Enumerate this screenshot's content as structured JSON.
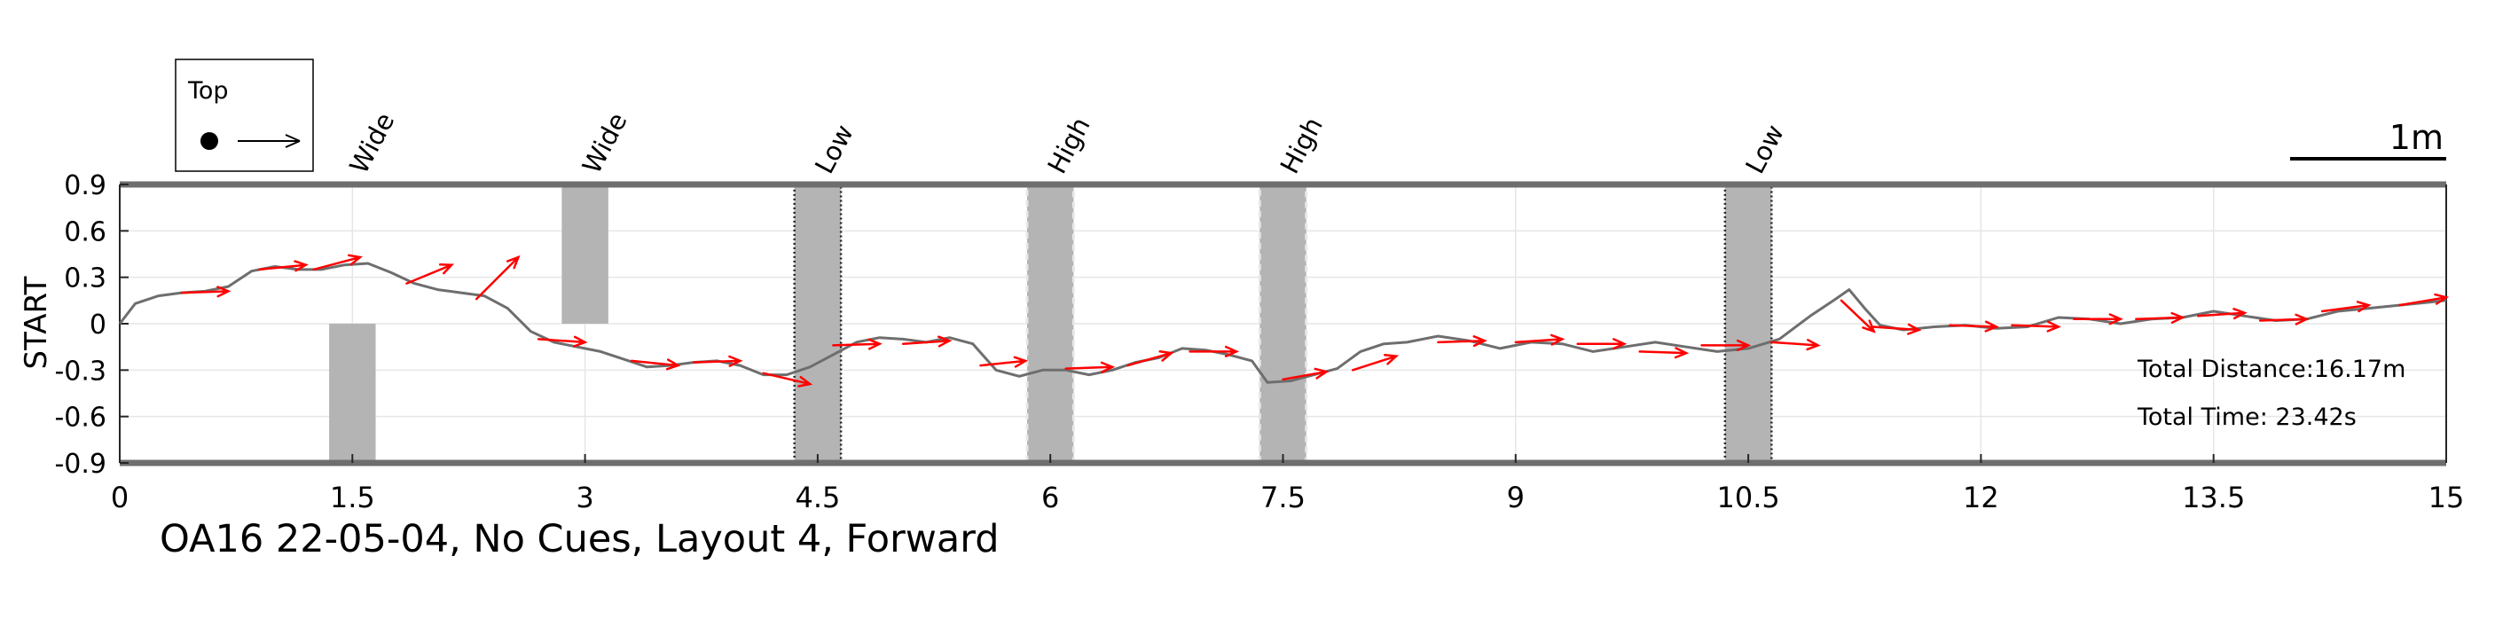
{
  "chart_data": {
    "type": "line",
    "title": "OA16 22-05-04, No Cues, Layout 4, Forward",
    "ylabel": "START",
    "xlabel": "",
    "xlim": [
      0,
      15
    ],
    "ylim": [
      -0.9,
      0.9
    ],
    "xticks": [
      0,
      1.5,
      3,
      4.5,
      6,
      7.5,
      9,
      10.5,
      12,
      13.5,
      15
    ],
    "xtick_labels": [
      "0",
      "1.5",
      "3",
      "4.5",
      "6",
      "7.5",
      "9",
      "10.5",
      "12",
      "13.5",
      "15"
    ],
    "yticks": [
      0.9,
      0.6,
      0.3,
      0,
      -0.3,
      -0.6,
      -0.9
    ],
    "ytick_labels": [
      "0.9",
      "0.6",
      "0.3",
      "0",
      "-0.3",
      "-0.6",
      "-0.9"
    ],
    "grid": true,
    "legend": {
      "label": "Top",
      "placement": "top-left"
    },
    "scale_bar_label": "1m",
    "annotations": [
      "Total Distance:16.17m",
      "Total Time: 23.42s"
    ],
    "obstacles": [
      {
        "label": "Wide",
        "x0": 1.35,
        "x1": 1.65,
        "y0": -0.9,
        "y1": 0.0,
        "style": "plain"
      },
      {
        "label": "Wide",
        "x0": 2.85,
        "x1": 3.15,
        "y0": 0.0,
        "y1": 0.9,
        "style": "plain"
      },
      {
        "label": "Low",
        "x0": 4.35,
        "x1": 4.65,
        "y0": -0.9,
        "y1": 0.9,
        "style": "dotted-dark"
      },
      {
        "label": "High",
        "x0": 5.85,
        "x1": 6.15,
        "y0": -0.9,
        "y1": 0.9,
        "style": "dashed-light"
      },
      {
        "label": "High",
        "x0": 7.35,
        "x1": 7.65,
        "y0": -0.9,
        "y1": 0.9,
        "style": "dashed-light"
      },
      {
        "label": "Low",
        "x0": 10.35,
        "x1": 10.65,
        "y0": -0.9,
        "y1": 0.9,
        "style": "dotted-dark"
      }
    ],
    "series": [
      {
        "name": "path",
        "x": [
          0,
          0.1,
          0.25,
          0.4,
          0.55,
          0.7,
          0.85,
          1.0,
          1.15,
          1.3,
          1.45,
          1.6,
          1.75,
          1.9,
          2.05,
          2.2,
          2.35,
          2.5,
          2.65,
          2.8,
          2.95,
          3.1,
          3.25,
          3.4,
          3.55,
          3.7,
          3.85,
          4.0,
          4.15,
          4.3,
          4.45,
          4.6,
          4.75,
          4.9,
          5.05,
          5.2,
          5.35,
          5.5,
          5.65,
          5.8,
          5.95,
          6.1,
          6.25,
          6.4,
          6.55,
          6.7,
          6.85,
          7.0,
          7.15,
          7.3,
          7.4,
          7.55,
          7.7,
          7.85,
          8.0,
          8.15,
          8.3,
          8.5,
          8.7,
          8.9,
          9.1,
          9.3,
          9.5,
          9.7,
          9.9,
          10.1,
          10.3,
          10.5,
          10.7,
          10.9,
          11.05,
          11.15,
          11.25,
          11.35,
          11.5,
          11.7,
          11.9,
          12.1,
          12.3,
          12.5,
          12.7,
          12.9,
          13.1,
          13.3,
          13.5,
          13.7,
          13.9,
          14.1,
          14.3,
          14.5,
          14.7,
          14.9,
          15.0
        ],
        "y": [
          0.0,
          0.13,
          0.18,
          0.2,
          0.21,
          0.24,
          0.34,
          0.37,
          0.35,
          0.35,
          0.38,
          0.39,
          0.33,
          0.26,
          0.22,
          0.2,
          0.18,
          0.1,
          -0.05,
          -0.12,
          -0.15,
          -0.18,
          -0.23,
          -0.28,
          -0.27,
          -0.25,
          -0.24,
          -0.27,
          -0.33,
          -0.33,
          -0.28,
          -0.2,
          -0.12,
          -0.09,
          -0.1,
          -0.12,
          -0.09,
          -0.13,
          -0.3,
          -0.34,
          -0.3,
          -0.3,
          -0.33,
          -0.3,
          -0.25,
          -0.22,
          -0.16,
          -0.17,
          -0.2,
          -0.24,
          -0.38,
          -0.37,
          -0.33,
          -0.29,
          -0.18,
          -0.13,
          -0.12,
          -0.08,
          -0.11,
          -0.16,
          -0.12,
          -0.13,
          -0.18,
          -0.15,
          -0.12,
          -0.15,
          -0.18,
          -0.16,
          -0.1,
          0.05,
          0.15,
          0.22,
          0.1,
          -0.01,
          -0.04,
          -0.02,
          -0.01,
          -0.03,
          -0.02,
          0.04,
          0.03,
          0.0,
          0.03,
          0.04,
          0.08,
          0.05,
          0.02,
          0.03,
          0.08,
          0.1,
          0.12,
          0.14,
          0.15
        ]
      }
    ],
    "heading_arrows": [
      {
        "x": 0.4,
        "y": 0.2,
        "dx": 0.3,
        "dy": 0.01
      },
      {
        "x": 0.9,
        "y": 0.35,
        "dx": 0.3,
        "dy": 0.03
      },
      {
        "x": 1.25,
        "y": 0.35,
        "dx": 0.3,
        "dy": 0.08
      },
      {
        "x": 1.85,
        "y": 0.26,
        "dx": 0.29,
        "dy": 0.12
      },
      {
        "x": 2.3,
        "y": 0.16,
        "dx": 0.27,
        "dy": 0.27
      },
      {
        "x": 2.7,
        "y": -0.1,
        "dx": 0.3,
        "dy": -0.02
      },
      {
        "x": 3.3,
        "y": -0.24,
        "dx": 0.3,
        "dy": -0.03
      },
      {
        "x": 3.7,
        "y": -0.25,
        "dx": 0.3,
        "dy": 0.01
      },
      {
        "x": 4.15,
        "y": -0.32,
        "dx": 0.3,
        "dy": -0.07
      },
      {
        "x": 4.6,
        "y": -0.14,
        "dx": 0.3,
        "dy": 0.01
      },
      {
        "x": 5.05,
        "y": -0.13,
        "dx": 0.3,
        "dy": 0.02
      },
      {
        "x": 5.55,
        "y": -0.27,
        "dx": 0.29,
        "dy": 0.03
      },
      {
        "x": 6.1,
        "y": -0.29,
        "dx": 0.3,
        "dy": 0.01
      },
      {
        "x": 6.5,
        "y": -0.27,
        "dx": 0.28,
        "dy": 0.08
      },
      {
        "x": 6.9,
        "y": -0.18,
        "dx": 0.3,
        "dy": 0.0
      },
      {
        "x": 7.5,
        "y": -0.36,
        "dx": 0.28,
        "dy": 0.05
      },
      {
        "x": 7.95,
        "y": -0.3,
        "dx": 0.28,
        "dy": 0.09
      },
      {
        "x": 8.5,
        "y": -0.12,
        "dx": 0.3,
        "dy": 0.01
      },
      {
        "x": 9.0,
        "y": -0.12,
        "dx": 0.3,
        "dy": 0.02
      },
      {
        "x": 9.4,
        "y": -0.13,
        "dx": 0.3,
        "dy": 0.0
      },
      {
        "x": 9.8,
        "y": -0.18,
        "dx": 0.3,
        "dy": -0.01
      },
      {
        "x": 10.2,
        "y": -0.14,
        "dx": 0.3,
        "dy": 0.0
      },
      {
        "x": 10.65,
        "y": -0.12,
        "dx": 0.3,
        "dy": -0.02
      },
      {
        "x": 11.1,
        "y": 0.15,
        "dx": 0.21,
        "dy": -0.2
      },
      {
        "x": 11.3,
        "y": -0.02,
        "dx": 0.3,
        "dy": -0.02
      },
      {
        "x": 11.8,
        "y": -0.01,
        "dx": 0.3,
        "dy": -0.01
      },
      {
        "x": 12.2,
        "y": -0.01,
        "dx": 0.3,
        "dy": -0.01
      },
      {
        "x": 12.6,
        "y": 0.03,
        "dx": 0.3,
        "dy": 0.0
      },
      {
        "x": 13.0,
        "y": 0.03,
        "dx": 0.3,
        "dy": 0.01
      },
      {
        "x": 13.4,
        "y": 0.05,
        "dx": 0.3,
        "dy": 0.02
      },
      {
        "x": 13.8,
        "y": 0.02,
        "dx": 0.3,
        "dy": 0.01
      },
      {
        "x": 14.2,
        "y": 0.08,
        "dx": 0.3,
        "dy": 0.04
      },
      {
        "x": 14.7,
        "y": 0.12,
        "dx": 0.3,
        "dy": 0.05
      }
    ],
    "colors": {
      "path": "#6e6e6e",
      "arrow": "#ff0000",
      "obstacle_fill": "#b4b4b4",
      "obstacle_dark_edge": "#222222",
      "obstacle_light_edge": "#e8e8e8",
      "grid": "#e6e6e6",
      "boundary": "#6e6e6e"
    }
  }
}
